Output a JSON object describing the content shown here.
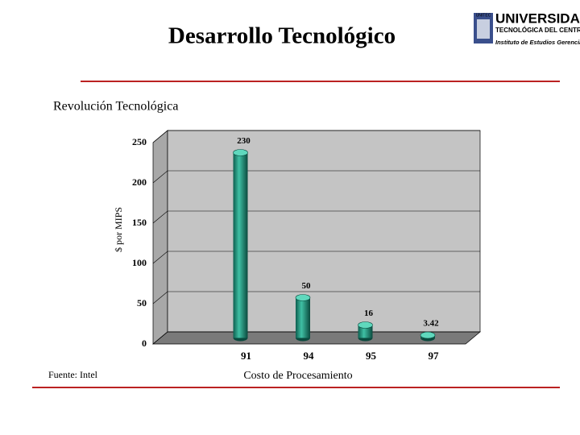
{
  "header": {
    "title": "Desarrollo Tecnológico",
    "logo": {
      "short": "UNITEC",
      "name": "UNIVERSIDAD",
      "subname": "TECNOLÓGICA DEL CENTRO",
      "institute": "Instituto de Estudios Gerenciales"
    }
  },
  "subtitle": "Revolución Tecnológica",
  "source": "Fuente: Intel",
  "chart_data": {
    "type": "bar3d",
    "x_label": "Costo de Procesamiento",
    "y_label": "$ por MIPS",
    "categories": [
      "91",
      "94",
      "95",
      "97"
    ],
    "values": [
      230,
      50,
      16,
      3.42
    ],
    "color": "#2e9c86",
    "ylim": [
      0,
      250
    ],
    "yticks": [
      0,
      50,
      100,
      150,
      200,
      250
    ],
    "grid": true
  }
}
